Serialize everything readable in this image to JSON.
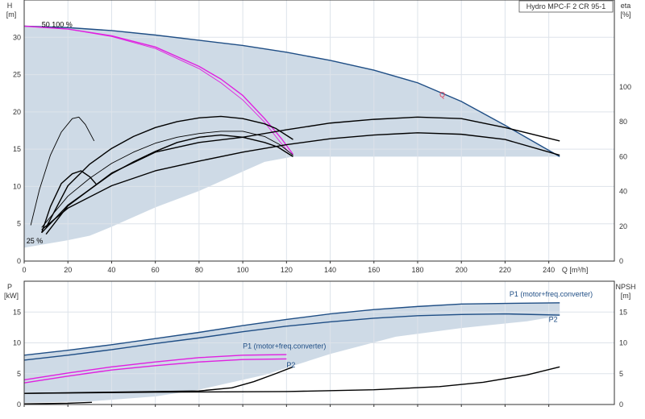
{
  "chart_data": [
    {
      "type": "line",
      "panel": "upper",
      "title": "Hydro MPC-F 2 CR 95-1",
      "xlabel": "Q [m³/h]",
      "ylabel": [
        "H",
        "[m]"
      ],
      "y2label": [
        "eta",
        "[%]"
      ],
      "xlim": [
        0,
        270
      ],
      "ylim": [
        0,
        35
      ],
      "y2lim": [
        0,
        150
      ],
      "x_ticks": [
        "0",
        "20",
        "40",
        "60",
        "80",
        "100",
        "120",
        "140",
        "160",
        "180",
        "200",
        "220",
        "240"
      ],
      "y_ticks": [
        "0",
        "5",
        "10",
        "15",
        "20",
        "25",
        "30"
      ],
      "y2_ticks": [
        "0",
        "20",
        "40",
        "60",
        "80",
        "100"
      ],
      "grid": true,
      "annotations": [
        {
          "text": "50 100 %",
          "x": 8,
          "y": 31.4
        },
        {
          "text": "25 %",
          "x": 1,
          "y": 2.4
        },
        {
          "text": "Q",
          "x": 190,
          "y": 22
        }
      ],
      "shaded_region": {
        "upper": [
          [
            0,
            31.5
          ],
          [
            20,
            31.3
          ],
          [
            40,
            30.9
          ],
          [
            60,
            30.3
          ],
          [
            80,
            29.6
          ],
          [
            100,
            28.9
          ],
          [
            120,
            28
          ],
          [
            140,
            26.9
          ],
          [
            160,
            25.6
          ],
          [
            180,
            23.9
          ],
          [
            200,
            21.4
          ],
          [
            220,
            18.2
          ],
          [
            245,
            14
          ]
        ],
        "lower": [
          [
            0,
            1.8
          ],
          [
            20,
            2.8
          ],
          [
            30,
            3.4
          ],
          [
            40,
            4.6
          ],
          [
            60,
            7.2
          ],
          [
            80,
            9.4
          ],
          [
            100,
            12
          ],
          [
            110,
            13.3
          ],
          [
            123,
            14
          ],
          [
            245,
            14
          ]
        ]
      },
      "series": [
        {
          "role": "max-curve",
          "color": "#1f4e85",
          "points": [
            [
              0,
              31.5
            ],
            [
              20,
              31.3
            ],
            [
              40,
              30.9
            ],
            [
              60,
              30.3
            ],
            [
              80,
              29.6
            ],
            [
              100,
              28.9
            ],
            [
              120,
              28
            ],
            [
              140,
              26.9
            ],
            [
              160,
              25.6
            ],
            [
              180,
              23.9
            ],
            [
              200,
              21.4
            ],
            [
              220,
              18.2
            ],
            [
              245,
              14
            ]
          ]
        },
        {
          "role": "one-pump-curve",
          "color": "#e020e0",
          "points": [
            [
              0,
              31.5
            ],
            [
              20,
              31.1
            ],
            [
              40,
              30.2
            ],
            [
              60,
              28.7
            ],
            [
              80,
              26.1
            ],
            [
              90,
              24.4
            ],
            [
              100,
              22.2
            ],
            [
              110,
              19.1
            ],
            [
              118,
              16.3
            ],
            [
              123,
              14.3
            ]
          ]
        },
        {
          "role": "one-pump-curve-thin",
          "color": "#e020e0",
          "points": [
            [
              0,
              31.5
            ],
            [
              20,
              31.1
            ],
            [
              40,
              30.1
            ],
            [
              60,
              28.5
            ],
            [
              80,
              25.8
            ],
            [
              90,
              23.9
            ],
            [
              100,
              21.6
            ],
            [
              110,
              18.6
            ],
            [
              117,
              16
            ],
            [
              121,
              14.6
            ]
          ]
        },
        {
          "role": "eta-upper",
          "color": "#000000",
          "points": [
            [
              10,
              3.6
            ],
            [
              20,
              7.4
            ],
            [
              40,
              11.8
            ],
            [
              60,
              14.6
            ],
            [
              80,
              15.9
            ],
            [
              100,
              16.6
            ],
            [
              120,
              17.6
            ],
            [
              140,
              18.5
            ],
            [
              160,
              19
            ],
            [
              180,
              19.3
            ],
            [
              200,
              19.1
            ],
            [
              220,
              17.9
            ],
            [
              245,
              16.1
            ]
          ]
        },
        {
          "role": "eta-main",
          "color": "#000000",
          "points": [
            [
              8,
              4.2
            ],
            [
              20,
              7.1
            ],
            [
              40,
              10.1
            ],
            [
              60,
              12.1
            ],
            [
              80,
              13.4
            ],
            [
              100,
              14.6
            ],
            [
              120,
              15.6
            ],
            [
              140,
              16.4
            ],
            [
              160,
              16.9
            ],
            [
              180,
              17.2
            ],
            [
              200,
              17
            ],
            [
              220,
              16.3
            ],
            [
              245,
              14.2
            ]
          ]
        },
        {
          "role": "eta-one-pump-outer",
          "color": "#000000",
          "points": [
            [
              10,
              4.5
            ],
            [
              20,
              10.1
            ],
            [
              30,
              13
            ],
            [
              40,
              15.1
            ],
            [
              50,
              16.7
            ],
            [
              60,
              17.9
            ],
            [
              70,
              18.7
            ],
            [
              80,
              19.2
            ],
            [
              90,
              19.4
            ],
            [
              100,
              19.1
            ],
            [
              110,
              18.4
            ],
            [
              115,
              17.8
            ],
            [
              123,
              16.3
            ]
          ]
        },
        {
          "role": "eta-one-pump-mid",
          "color": "#000000",
          "points": [
            [
              8,
              4.5
            ],
            [
              20,
              8.7
            ],
            [
              30,
              11.1
            ],
            [
              40,
              13.1
            ],
            [
              50,
              14.6
            ],
            [
              60,
              15.8
            ],
            [
              70,
              16.6
            ],
            [
              80,
              17.1
            ],
            [
              90,
              17.4
            ],
            [
              100,
              17.4
            ],
            [
              110,
              16.7
            ],
            [
              117,
              15.6
            ],
            [
              123,
              14.2
            ]
          ]
        },
        {
          "role": "eta-one-pump-inner",
          "color": "#000000",
          "points": [
            [
              8,
              3.8
            ],
            [
              20,
              7.5
            ],
            [
              30,
              9.6
            ],
            [
              40,
              11.7
            ],
            [
              50,
              13.3
            ],
            [
              60,
              14.7
            ],
            [
              70,
              15.9
            ],
            [
              80,
              16.6
            ],
            [
              90,
              16.9
            ],
            [
              100,
              16.6
            ],
            [
              110,
              15.9
            ],
            [
              116,
              15.3
            ],
            [
              123,
              14
            ]
          ]
        },
        {
          "role": "eta-small-a",
          "color": "#000000",
          "points": [
            [
              3,
              4.8
            ],
            [
              7,
              9.6
            ],
            [
              12,
              14.2
            ],
            [
              17,
              17.3
            ],
            [
              22,
              19.1
            ],
            [
              25,
              19.3
            ],
            [
              28,
              18.3
            ],
            [
              32,
              16.1
            ]
          ]
        },
        {
          "role": "eta-small-b",
          "color": "#000000",
          "points": [
            [
              8,
              3.8
            ],
            [
              12,
              7.3
            ],
            [
              17,
              10.4
            ],
            [
              22,
              11.7
            ],
            [
              26,
              12.1
            ],
            [
              30,
              11.3
            ],
            [
              33,
              10.3
            ]
          ]
        }
      ]
    },
    {
      "type": "line",
      "panel": "lower",
      "xlim": [
        0,
        270
      ],
      "ylim": [
        0,
        20
      ],
      "y2lim": [
        0,
        20
      ],
      "ylabel": [
        "P",
        "[kW]"
      ],
      "y2label": [
        "NPSH",
        "[m]"
      ],
      "y_ticks": [
        "0",
        "5",
        "10",
        "15"
      ],
      "y2_ticks": [
        "0",
        "5",
        "10",
        "15"
      ],
      "grid": true,
      "annotations": [
        {
          "text": "P1 (motor+freq.converter)",
          "x": 222,
          "y": 17.5
        },
        {
          "text": "P2",
          "x": 240,
          "y": 13.4
        },
        {
          "text": "P1 (motor+freq.converter)",
          "x": 100,
          "y": 9.1
        },
        {
          "text": "P2",
          "x": 120,
          "y": 6
        }
      ],
      "shaded_region": {
        "upper": [
          [
            0,
            8
          ],
          [
            40,
            9.7
          ],
          [
            80,
            11.7
          ],
          [
            120,
            13.8
          ],
          [
            160,
            15.4
          ],
          [
            200,
            16.3
          ],
          [
            245,
            16.5
          ]
        ],
        "lower": [
          [
            0,
            0.3
          ],
          [
            30,
            0.5
          ],
          [
            60,
            1.3
          ],
          [
            80,
            2.4
          ],
          [
            110,
            4.8
          ],
          [
            140,
            8.2
          ],
          [
            170,
            11
          ],
          [
            200,
            12.4
          ],
          [
            230,
            13.5
          ],
          [
            245,
            14.4
          ]
        ]
      },
      "series": [
        {
          "role": "P1-total",
          "color": "#1f4e85",
          "points": [
            [
              0,
              8
            ],
            [
              20,
              8.8
            ],
            [
              40,
              9.7
            ],
            [
              60,
              10.7
            ],
            [
              80,
              11.7
            ],
            [
              100,
              12.8
            ],
            [
              120,
              13.8
            ],
            [
              140,
              14.7
            ],
            [
              160,
              15.4
            ],
            [
              180,
              15.9
            ],
            [
              200,
              16.3
            ],
            [
              220,
              16.4
            ],
            [
              245,
              16.5
            ]
          ]
        },
        {
          "role": "P2-total",
          "color": "#1f4e85",
          "points": [
            [
              0,
              7.2
            ],
            [
              20,
              8
            ],
            [
              40,
              8.9
            ],
            [
              60,
              9.9
            ],
            [
              80,
              10.8
            ],
            [
              100,
              11.8
            ],
            [
              120,
              12.7
            ],
            [
              140,
              13.4
            ],
            [
              160,
              14
            ],
            [
              180,
              14.4
            ],
            [
              200,
              14.6
            ],
            [
              220,
              14.7
            ],
            [
              245,
              14.5
            ]
          ]
        },
        {
          "role": "P1-one-pump",
          "color": "#e020e0",
          "points": [
            [
              0,
              4
            ],
            [
              20,
              5.1
            ],
            [
              40,
              6.1
            ],
            [
              60,
              6.9
            ],
            [
              80,
              7.6
            ],
            [
              100,
              8
            ],
            [
              120,
              8.1
            ]
          ]
        },
        {
          "role": "P2-one-pump",
          "color": "#e020e0",
          "points": [
            [
              0,
              3.5
            ],
            [
              20,
              4.6
            ],
            [
              40,
              5.6
            ],
            [
              60,
              6.3
            ],
            [
              80,
              6.9
            ],
            [
              100,
              7.3
            ],
            [
              120,
              7.4
            ]
          ]
        },
        {
          "role": "NPSH-one-pump",
          "color": "#000000",
          "points": [
            [
              0,
              1.8
            ],
            [
              40,
              2
            ],
            [
              80,
              2.2
            ],
            [
              95,
              2.7
            ],
            [
              105,
              3.7
            ],
            [
              115,
              5
            ],
            [
              123,
              6.1
            ]
          ]
        },
        {
          "role": "NPSH-total",
          "color": "#000000",
          "points": [
            [
              0,
              1.8
            ],
            [
              60,
              2
            ],
            [
              120,
              2.1
            ],
            [
              160,
              2.4
            ],
            [
              190,
              2.9
            ],
            [
              210,
              3.6
            ],
            [
              230,
              4.8
            ],
            [
              245,
              6.1
            ]
          ]
        },
        {
          "role": "NPSH-low",
          "color": "#000000",
          "points": [
            [
              0,
              0.1
            ],
            [
              20,
              0.2
            ],
            [
              31,
              0.35
            ]
          ]
        }
      ]
    }
  ]
}
